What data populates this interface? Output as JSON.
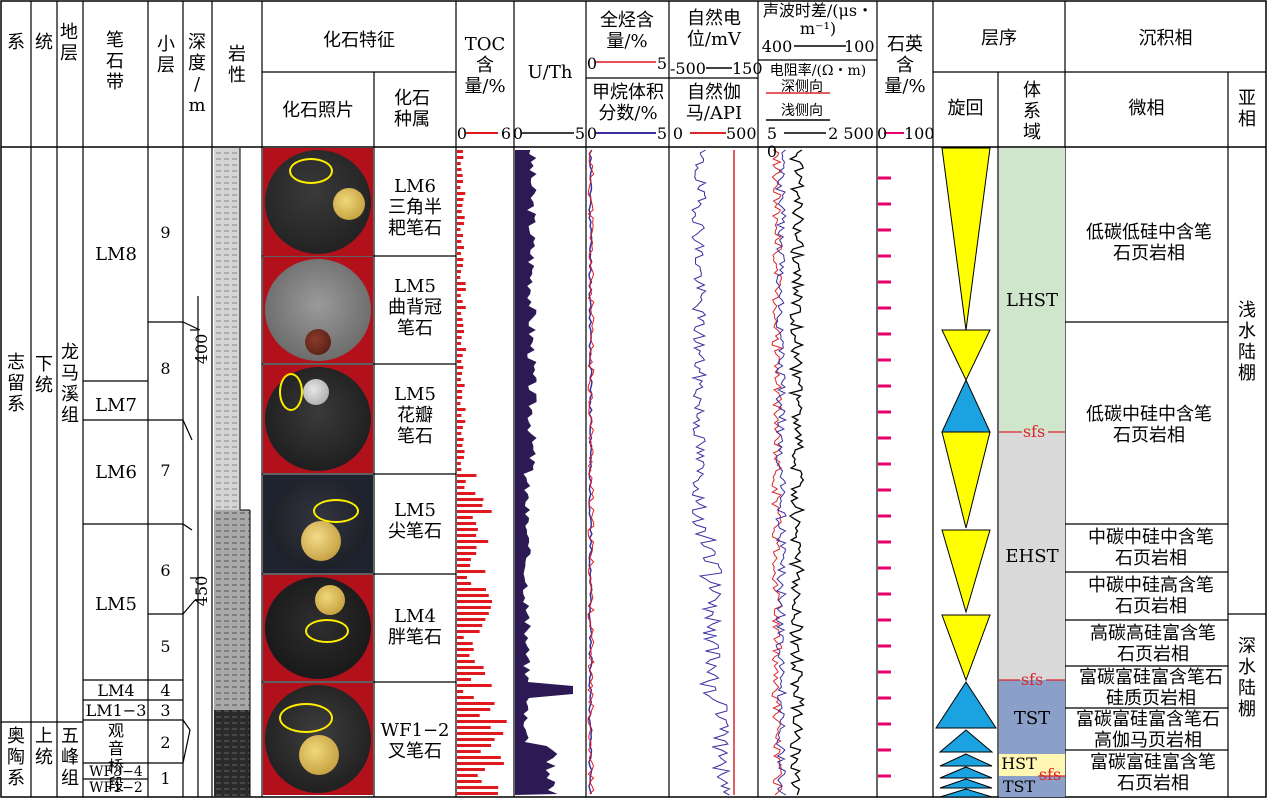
{
  "header": {
    "system": "系",
    "series": "统",
    "formation": "地层",
    "graptolite_zone": "笔石带",
    "sublayer": "小层",
    "depth": "深度/m",
    "lithology": "岩性",
    "fossil_features": "化石特征",
    "fossil_photo": "化石照片",
    "fossil_genus": "化石种属",
    "toc": "TOC含量/%",
    "toc_scale": [
      "0",
      "6"
    ],
    "uth": "U/Th",
    "uth_scale": [
      "0",
      "5"
    ],
    "total_hc": "全烃含量/%",
    "total_hc_scale": [
      "0",
      "5"
    ],
    "methane": "甲烷体积分数/%",
    "methane_scale": [
      "0",
      "5"
    ],
    "sp": "自然电位/mV",
    "sp_scale": [
      "-500",
      "150"
    ],
    "gr": "自然伽马/API",
    "gr_scale": [
      "0",
      "500"
    ],
    "ac": "声波时差/(μs・m⁻¹)",
    "ac_scale": [
      "400",
      "100"
    ],
    "res": "电阻率/(Ω・m)",
    "deep_lateral": "深侧向",
    "shallow_lateral": "浅侧向",
    "res_scale": [
      "50",
      "2 500"
    ],
    "quartz": "石英含量/%",
    "quartz_scale": [
      "0",
      "100"
    ],
    "sequence": "层序",
    "cycle": "旋回",
    "systems_tract": "体系域",
    "facies": "沉积相",
    "microfacies": "微相",
    "subfacies": "亚相"
  },
  "strata": {
    "silurian": "志留系",
    "ordovician": "奥陶系",
    "lower": "下统",
    "upper": "上统",
    "longmaxi": "龙马溪组",
    "wufeng": "五峰组"
  },
  "zones": [
    "LM8",
    "LM7",
    "LM6",
    "LM5",
    "LM4",
    "LM1−3",
    "观音桥段",
    "WF3−4",
    "WF1−2"
  ],
  "sublayers": [
    "9",
    "8",
    "7",
    "6",
    "5",
    "4",
    "3",
    "2",
    "1"
  ],
  "depth_ticks": [
    "400",
    "450"
  ],
  "fossils": [
    {
      "zone": "LM6",
      "name": "三角半耙笔石"
    },
    {
      "zone": "LM5",
      "name": "曲背冠笔石"
    },
    {
      "zone": "LM5",
      "name": "花瓣笔石"
    },
    {
      "zone": "LM5",
      "name": "尖笔石"
    },
    {
      "zone": "LM4",
      "name": "胖笔石"
    },
    {
      "zone": "WF1−2",
      "name": "叉笔石"
    }
  ],
  "tracts": {
    "lhst": "LHST",
    "ehst": "EHST",
    "tst": "TST",
    "hst": "HST",
    "sfs": "sfs"
  },
  "microfacies": [
    "低碳低硅中含笔石页岩相",
    "低碳中硅中含笔石页岩相",
    "中碳中硅中含笔石页岩相",
    "中碳中硅高含笔石页岩相",
    "高碳高硅富含笔石页岩相",
    "富碳富硅富含笔石硅质页岩相",
    "富碳富硅富含笔石高伽马页岩相",
    "富碳富硅富含笔石页岩相"
  ],
  "subfacies": [
    "浅水陆棚",
    "深水陆棚"
  ],
  "colors": {
    "toc": "#e0191f",
    "uth": "#2d1a55",
    "gr": "#d9262b",
    "sp": "#3a2fa0",
    "quartz": "#e5006e",
    "yellow": "#ffff00",
    "blue": "#1aa3e0",
    "lhst": "#cfe6cc",
    "ehst": "#d9d9d9",
    "tst": "#8aa0c8",
    "hst": "#fff7b3"
  }
}
